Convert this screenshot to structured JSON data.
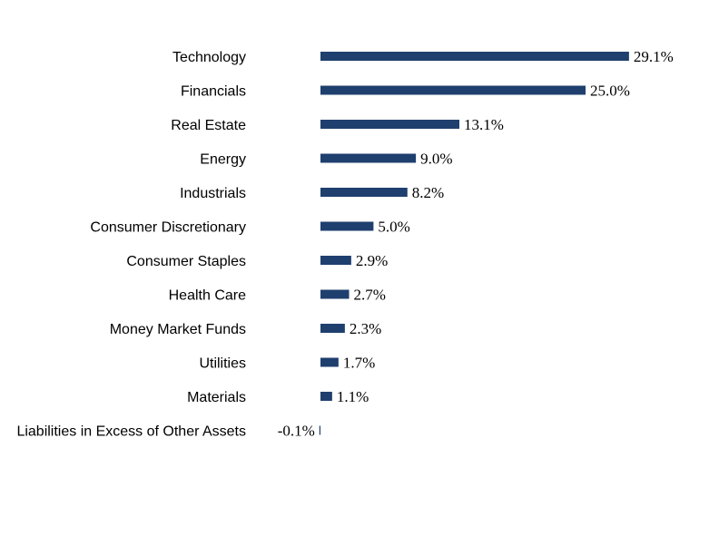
{
  "chart_data": {
    "type": "bar",
    "orientation": "horizontal",
    "categories": [
      "Technology",
      "Financials",
      "Real Estate",
      "Energy",
      "Industrials",
      "Consumer Discretionary",
      "Consumer Staples",
      "Health Care",
      "Money Market Funds",
      "Utilities",
      "Materials",
      "Liabilities in Excess of Other Assets"
    ],
    "values": [
      29.1,
      25.0,
      13.1,
      9.0,
      8.2,
      5.0,
      2.9,
      2.7,
      2.3,
      1.7,
      1.1,
      -0.1
    ],
    "value_labels": [
      "29.1%",
      "25.0%",
      "13.1%",
      "9.0%",
      "8.2%",
      "5.0%",
      "2.9%",
      "2.7%",
      "2.3%",
      "1.7%",
      "1.1%",
      "-0.1%"
    ],
    "title": "",
    "xlabel": "",
    "ylabel": "",
    "grid": false,
    "legend": "none",
    "bar_color": "#1f3f6e"
  }
}
